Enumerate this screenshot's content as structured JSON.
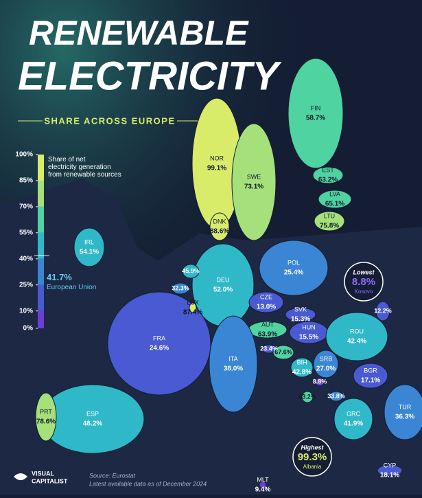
{
  "header": {
    "title_line1": "RENEWABLE",
    "title_line2": "ELECTRICITY",
    "subtitle": "SHARE ACROSS EUROPE"
  },
  "legend": {
    "caption": "Share of net electricity generation from renewable sources",
    "ticks": [
      {
        "value": 0,
        "label": "0%"
      },
      {
        "value": 10,
        "label": "10%"
      },
      {
        "value": 25,
        "label": "25%"
      },
      {
        "value": 40,
        "label": "40%"
      },
      {
        "value": 55,
        "label": "55%"
      },
      {
        "value": 70,
        "label": "70%"
      },
      {
        "value": 85,
        "label": "85%"
      },
      {
        "value": 100,
        "label": "100%"
      }
    ],
    "colors": [
      "#6a3fd6",
      "#4a5ad2",
      "#3a86d4",
      "#2fb8c8",
      "#4fd3a0",
      "#a6e07a",
      "#d9ec6a"
    ],
    "eu": {
      "value": 41.7,
      "value_label": "41.7%",
      "name": "European Union"
    }
  },
  "countries": [
    {
      "code": "NOR",
      "value": 99.1,
      "value_label": "99.1%"
    },
    {
      "code": "SWE",
      "value": 73.1,
      "value_label": "73.1%"
    },
    {
      "code": "FIN",
      "value": 58.7,
      "value_label": "58.7%"
    },
    {
      "code": "EST",
      "value": 63.2,
      "value_label": "63.2%"
    },
    {
      "code": "LVA",
      "value": 65.1,
      "value_label": "65.1%"
    },
    {
      "code": "LTU",
      "value": 75.8,
      "value_label": "75.8%"
    },
    {
      "code": "DNK",
      "value": 88.6,
      "value_label": "88.6%"
    },
    {
      "code": "IRL",
      "value": 54.1,
      "value_label": "54.1%"
    },
    {
      "code": "POL",
      "value": 25.4,
      "value_label": "25.4%"
    },
    {
      "code": "DEU",
      "value": 52.0,
      "value_label": "52.0%"
    },
    {
      "code": "CZE",
      "value": 13.0,
      "value_label": "13.0%"
    },
    {
      "code": "SVK",
      "value": 15.3,
      "value_label": "15.3%"
    },
    {
      "code": "HUN",
      "value": 15.5,
      "value_label": "15.5%"
    },
    {
      "code": "AUT",
      "value": 63.9,
      "value_label": "63.9%"
    },
    {
      "code": "FRA",
      "value": 24.6,
      "value_label": "24.6%"
    },
    {
      "code": "LUX",
      "value": 87.4,
      "value_label": "87.4%"
    },
    {
      "code": "ROU",
      "value": 42.4,
      "value_label": "42.4%"
    },
    {
      "code": "BGR",
      "value": 17.1,
      "value_label": "17.1%"
    },
    {
      "code": "SRB",
      "value": 27.0,
      "value_label": "27.0%"
    },
    {
      "code": "BIH",
      "value": 42.8,
      "value_label": "42.8%"
    },
    {
      "code": "ITA",
      "value": 38.0,
      "value_label": "38.0%"
    },
    {
      "code": "ESP",
      "value": 48.2,
      "value_label": "48.2%"
    },
    {
      "code": "PRT",
      "value": 78.6,
      "value_label": "78.6%"
    },
    {
      "code": "GRC",
      "value": 41.9,
      "value_label": "41.9%"
    },
    {
      "code": "TUR",
      "value": 36.3,
      "value_label": "36.3%"
    },
    {
      "code": "CYP",
      "value": 18.1,
      "value_label": "18.1%"
    },
    {
      "code": "MLT",
      "value": 9.4,
      "value_label": "9.4%"
    },
    {
      "code": null,
      "value": 45.9,
      "value_label": "45.9%"
    },
    {
      "code": null,
      "value": 32.3,
      "value_label": "32.3%"
    },
    {
      "code": null,
      "value": 12.2,
      "value_label": "12.2%"
    },
    {
      "code": null,
      "value": 23.4,
      "value_label": "23.4%"
    },
    {
      "code": null,
      "value": 67.6,
      "value_label": "67.6%"
    },
    {
      "code": null,
      "value": 8.8,
      "value_label": "8.8%"
    },
    {
      "code": null,
      "value": 33.8,
      "value_label": "33.8%"
    },
    {
      "code": null,
      "value": 63.2,
      "value_label": "63.2%"
    }
  ],
  "highlights": [
    {
      "heading": "Lowest",
      "value": 8.8,
      "value_label": "8.8%",
      "name": "Kosovo"
    },
    {
      "heading": "Highest",
      "value": 99.3,
      "value_label": "99.3%",
      "name": "Albania"
    }
  ],
  "footer": {
    "logo_line1": "VISUAL",
    "logo_line2": "CAPITALIST",
    "source": "Source: Eurostat",
    "note": "Latest available data as of December 2024"
  }
}
